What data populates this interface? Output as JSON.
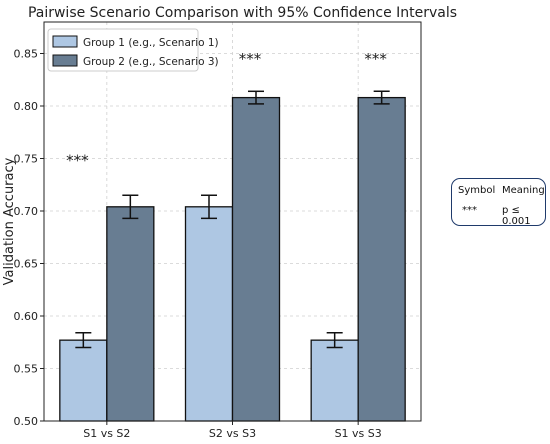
{
  "chart_data": {
    "type": "bar",
    "title": "Pairwise Scenario Comparison with 95% Confidence Intervals",
    "xlabel": "",
    "ylabel": "Validation Accuracy",
    "categories": [
      "S1 vs S2",
      "S2 vs S3",
      "S1 vs S3"
    ],
    "series": [
      {
        "name": "Group 1 (e.g., Scenario 1)",
        "values": [
          0.577,
          0.704,
          0.577
        ],
        "ci": [
          0.007,
          0.011,
          0.007
        ],
        "color": "#aec7e3"
      },
      {
        "name": "Group 2 (e.g., Scenario 3)",
        "values": [
          0.704,
          0.808,
          0.808
        ],
        "ci": [
          0.011,
          0.006,
          0.006
        ],
        "color": "#687d92"
      }
    ],
    "significance": [
      "***",
      "***",
      "***"
    ],
    "ylim": [
      0.5,
      0.88
    ],
    "yticks": [
      "0.50",
      "0.55",
      "0.60",
      "0.65",
      "0.70",
      "0.75",
      "0.80",
      "0.85"
    ],
    "grid": true,
    "legend_position": "top-left"
  },
  "symbol_table": {
    "headers": [
      "Symbol",
      "Meaning"
    ],
    "rows": [
      [
        "***",
        "p ≤ 0.001"
      ]
    ],
    "border_color": "#1f3a6b"
  }
}
